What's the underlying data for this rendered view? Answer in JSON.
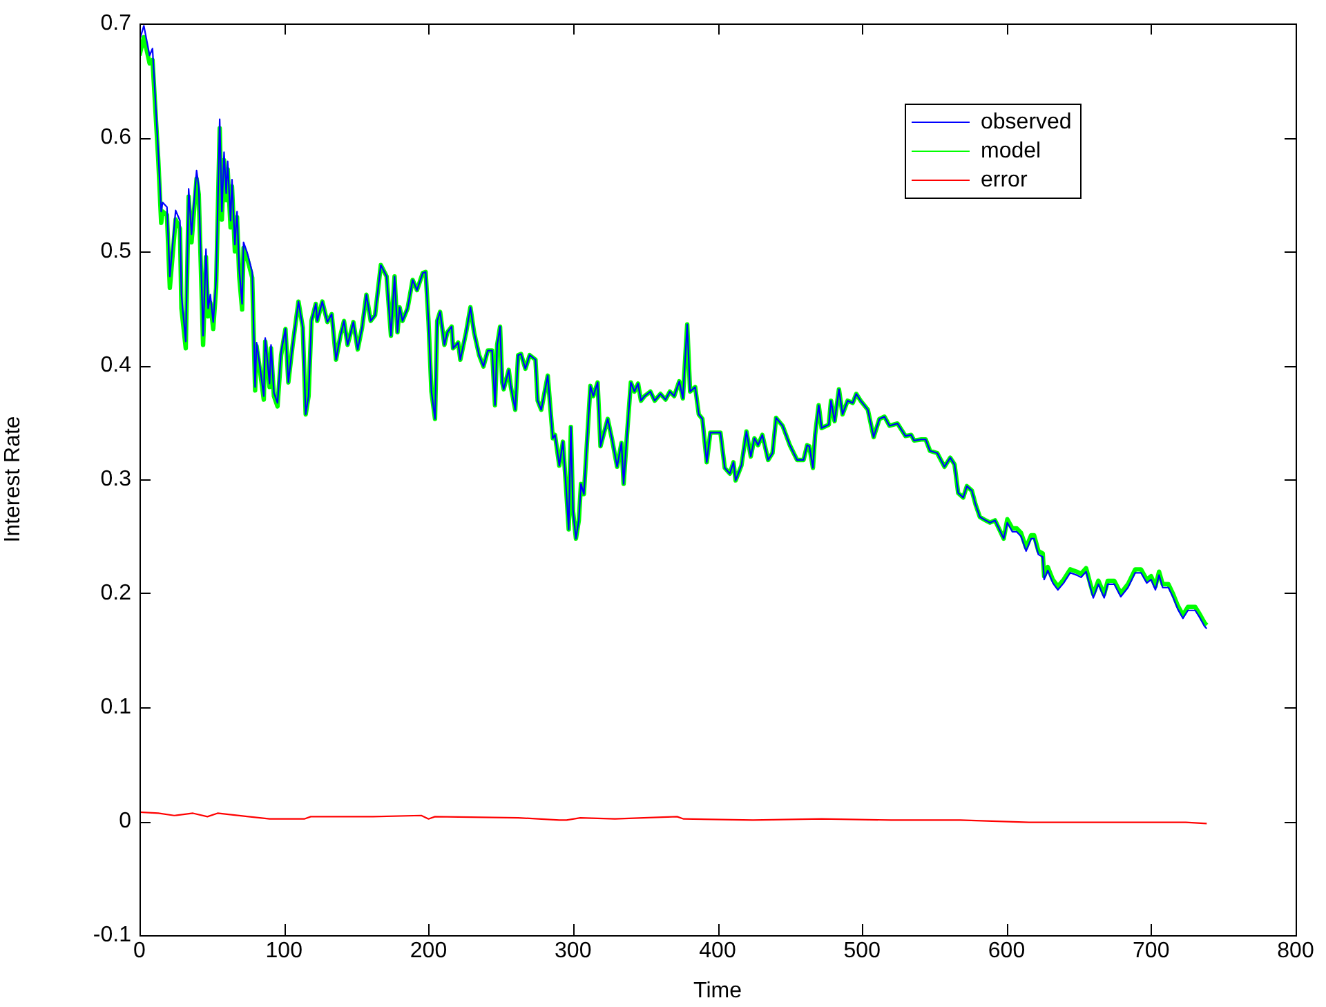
{
  "chart_data": {
    "type": "line",
    "xlabel": "Time",
    "ylabel": "Interest Rate",
    "xlim": [
      0,
      800
    ],
    "ylim": [
      -0.1,
      0.7
    ],
    "xticks": [
      0,
      100,
      200,
      300,
      400,
      500,
      600,
      700,
      800
    ],
    "yticks": [
      -0.1,
      0,
      0.1,
      0.2,
      0.3,
      0.4,
      0.5,
      0.6,
      0.7
    ],
    "grid": false,
    "legend": "top right",
    "marker": "none",
    "line_style": "solid",
    "x": [
      0,
      3,
      7,
      9,
      13,
      15,
      16,
      19,
      21,
      25,
      28,
      29,
      32,
      34,
      36,
      39.5,
      41,
      44,
      46,
      47.5,
      49,
      51,
      53,
      55.5,
      57,
      58.5,
      60,
      61,
      63,
      64,
      66,
      67.5,
      69,
      71,
      72,
      74.5,
      78,
      80,
      81,
      83,
      86,
      87,
      90,
      91,
      93,
      95.5,
      98,
      101,
      103,
      106,
      110,
      113,
      115,
      117,
      119,
      122,
      123,
      126.5,
      130,
      133,
      136,
      139,
      141.5,
      144,
      148,
      151,
      154,
      157,
      160,
      163,
      167,
      171,
      174,
      176.5,
      178.5,
      180,
      182,
      185.5,
      189,
      192,
      196,
      198,
      200,
      202,
      204.5,
      206,
      208,
      211,
      213,
      216,
      217,
      220.5,
      222,
      226,
      229,
      231.5,
      235,
      238,
      241,
      244,
      246,
      247.5,
      249.5,
      251,
      252,
      255.5,
      257,
      260,
      262,
      264,
      267,
      270,
      274,
      275.5,
      278,
      282.5,
      286,
      287.5,
      290.5,
      293,
      295,
      297,
      298.5,
      300,
      302,
      304,
      305.5,
      307.5,
      312,
      314,
      317,
      319,
      324,
      327,
      330.5,
      333.5,
      335,
      337.5,
      340,
      342.5,
      345,
      347,
      349.5,
      353.5,
      356.5,
      360.5,
      364,
      367,
      370,
      373.5,
      376,
      379,
      381,
      384.5,
      387,
      389.5,
      392.5,
      395,
      399,
      402,
      405,
      408.5,
      411,
      412.5,
      416.5,
      420,
      423,
      425.5,
      428,
      431,
      435,
      438,
      440.5,
      445,
      450,
      455,
      459.5,
      462,
      463.5,
      466,
      467.5,
      470,
      472,
      477,
      478.5,
      481,
      484,
      486.5,
      490,
      493.5,
      496,
      499,
      504,
      508,
      512,
      515.5,
      519,
      524.5,
      530,
      534,
      536,
      541,
      544,
      547,
      552,
      557,
      561,
      564,
      566.5,
      570,
      572.5,
      576,
      578.5,
      581.5,
      585.5,
      588.5,
      592,
      595,
      598,
      600.5,
      604,
      607,
      610,
      613.5,
      617,
      619,
      622,
      625,
      626,
      628.5,
      632,
      635.5,
      639.5,
      644,
      648.5,
      651.5,
      655,
      658,
      660,
      663.5,
      667.5,
      670,
      674.5,
      679,
      684,
      689,
      693,
      697,
      700,
      703,
      705.5,
      708,
      712,
      715,
      718.5,
      722,
      725.5,
      730.5,
      733.5,
      737,
      738.5
    ],
    "series": [
      {
        "name": "observed",
        "color": "#0000ff",
        "values": [
          0.685,
          0.698,
          0.672,
          0.678,
          0.587,
          0.535,
          0.543,
          0.539,
          0.478,
          0.536,
          0.527,
          0.462,
          0.421,
          0.555,
          0.515,
          0.571,
          0.557,
          0.426,
          0.502,
          0.45,
          0.462,
          0.438,
          0.475,
          0.616,
          0.535,
          0.587,
          0.551,
          0.579,
          0.527,
          0.563,
          0.506,
          0.535,
          0.484,
          0.454,
          0.508,
          0.499,
          0.482,
          0.381,
          0.42,
          0.402,
          0.373,
          0.424,
          0.384,
          0.418,
          0.376,
          0.367,
          0.412,
          0.432,
          0.385,
          0.418,
          0.456,
          0.433,
          0.357,
          0.373,
          0.439,
          0.454,
          0.439,
          0.456,
          0.438,
          0.445,
          0.405,
          0.426,
          0.439,
          0.418,
          0.438,
          0.414,
          0.433,
          0.462,
          0.439,
          0.444,
          0.488,
          0.478,
          0.426,
          0.478,
          0.429,
          0.451,
          0.439,
          0.45,
          0.475,
          0.466,
          0.481,
          0.482,
          0.438,
          0.377,
          0.353,
          0.439,
          0.447,
          0.418,
          0.429,
          0.434,
          0.415,
          0.42,
          0.405,
          0.429,
          0.451,
          0.429,
          0.409,
          0.399,
          0.413,
          0.413,
          0.365,
          0.418,
          0.434,
          0.385,
          0.379,
          0.396,
          0.381,
          0.361,
          0.409,
          0.41,
          0.397,
          0.409,
          0.405,
          0.369,
          0.361,
          0.391,
          0.336,
          0.339,
          0.312,
          0.333,
          0.296,
          0.256,
          0.346,
          0.272,
          0.248,
          0.264,
          0.296,
          0.287,
          0.382,
          0.373,
          0.385,
          0.329,
          0.353,
          0.335,
          0.311,
          0.332,
          0.296,
          0.342,
          0.385,
          0.377,
          0.384,
          0.369,
          0.373,
          0.377,
          0.369,
          0.375,
          0.37,
          0.377,
          0.373,
          0.386,
          0.371,
          0.436,
          0.377,
          0.381,
          0.357,
          0.353,
          0.315,
          0.341,
          0.341,
          0.341,
          0.31,
          0.305,
          0.315,
          0.299,
          0.312,
          0.342,
          0.32,
          0.336,
          0.33,
          0.339,
          0.317,
          0.323,
          0.354,
          0.347,
          0.33,
          0.317,
          0.317,
          0.33,
          0.329,
          0.31,
          0.339,
          0.365,
          0.345,
          0.348,
          0.369,
          0.351,
          0.379,
          0.357,
          0.369,
          0.367,
          0.375,
          0.369,
          0.361,
          0.337,
          0.353,
          0.355,
          0.347,
          0.349,
          0.338,
          0.339,
          0.334,
          0.335,
          0.335,
          0.325,
          0.323,
          0.311,
          0.319,
          0.313,
          0.288,
          0.284,
          0.294,
          0.29,
          0.278,
          0.267,
          0.264,
          0.262,
          0.264,
          0.256,
          0.248,
          0.262,
          0.254,
          0.254,
          0.25,
          0.237,
          0.248,
          0.248,
          0.234,
          0.232,
          0.212,
          0.22,
          0.209,
          0.203,
          0.209,
          0.218,
          0.216,
          0.214,
          0.219,
          0.205,
          0.196,
          0.208,
          0.196,
          0.208,
          0.208,
          0.197,
          0.205,
          0.218,
          0.218,
          0.209,
          0.212,
          0.203,
          0.216,
          0.205,
          0.205,
          0.197,
          0.186,
          0.178,
          0.185,
          0.185,
          0.179,
          0.171,
          0.169
        ]
      },
      {
        "name": "model",
        "color": "#00ff00",
        "values": [
          0.672,
          0.688,
          0.665,
          0.668,
          0.58,
          0.525,
          0.535,
          0.532,
          0.468,
          0.528,
          0.52,
          0.45,
          0.415,
          0.548,
          0.508,
          0.564,
          0.55,
          0.418,
          0.495,
          0.443,
          0.455,
          0.432,
          0.468,
          0.608,
          0.528,
          0.58,
          0.545,
          0.572,
          0.521,
          0.557,
          0.5,
          0.53,
          0.478,
          0.449,
          0.503,
          0.494,
          0.477,
          0.378,
          0.417,
          0.399,
          0.37,
          0.421,
          0.381,
          0.415,
          0.373,
          0.364,
          0.409,
          0.432,
          0.385,
          0.418,
          0.456,
          0.433,
          0.357,
          0.373,
          0.439,
          0.454,
          0.439,
          0.456,
          0.438,
          0.445,
          0.405,
          0.426,
          0.439,
          0.418,
          0.438,
          0.414,
          0.433,
          0.462,
          0.439,
          0.444,
          0.488,
          0.478,
          0.426,
          0.478,
          0.429,
          0.451,
          0.439,
          0.45,
          0.475,
          0.466,
          0.481,
          0.482,
          0.438,
          0.377,
          0.353,
          0.439,
          0.447,
          0.418,
          0.429,
          0.434,
          0.415,
          0.42,
          0.405,
          0.429,
          0.451,
          0.429,
          0.409,
          0.399,
          0.413,
          0.413,
          0.365,
          0.418,
          0.434,
          0.385,
          0.379,
          0.396,
          0.381,
          0.361,
          0.409,
          0.41,
          0.397,
          0.409,
          0.405,
          0.369,
          0.361,
          0.391,
          0.336,
          0.339,
          0.312,
          0.333,
          0.296,
          0.256,
          0.346,
          0.272,
          0.248,
          0.264,
          0.296,
          0.287,
          0.382,
          0.373,
          0.385,
          0.329,
          0.353,
          0.335,
          0.311,
          0.332,
          0.296,
          0.342,
          0.385,
          0.377,
          0.384,
          0.369,
          0.373,
          0.377,
          0.369,
          0.375,
          0.37,
          0.377,
          0.373,
          0.386,
          0.371,
          0.436,
          0.377,
          0.381,
          0.357,
          0.353,
          0.315,
          0.341,
          0.341,
          0.341,
          0.31,
          0.305,
          0.315,
          0.299,
          0.312,
          0.342,
          0.32,
          0.336,
          0.33,
          0.339,
          0.317,
          0.323,
          0.354,
          0.347,
          0.33,
          0.317,
          0.317,
          0.33,
          0.329,
          0.31,
          0.339,
          0.365,
          0.345,
          0.348,
          0.369,
          0.351,
          0.379,
          0.357,
          0.369,
          0.367,
          0.375,
          0.369,
          0.361,
          0.337,
          0.353,
          0.355,
          0.347,
          0.349,
          0.338,
          0.339,
          0.334,
          0.335,
          0.335,
          0.325,
          0.323,
          0.311,
          0.319,
          0.313,
          0.288,
          0.284,
          0.294,
          0.29,
          0.278,
          0.267,
          0.264,
          0.262,
          0.264,
          0.256,
          0.248,
          0.265,
          0.257,
          0.257,
          0.253,
          0.24,
          0.251,
          0.251,
          0.237,
          0.235,
          0.215,
          0.223,
          0.212,
          0.206,
          0.212,
          0.221,
          0.219,
          0.217,
          0.222,
          0.208,
          0.199,
          0.211,
          0.199,
          0.211,
          0.211,
          0.2,
          0.208,
          0.221,
          0.221,
          0.212,
          0.215,
          0.206,
          0.219,
          0.208,
          0.208,
          0.2,
          0.189,
          0.181,
          0.188,
          0.188,
          0.182,
          0.174,
          0.172
        ]
      },
      {
        "name": "error",
        "color": "#ff0000",
        "x": [
          0,
          13,
          24,
          37,
          47,
          54,
          75.5,
          90,
          114,
          118.5,
          161.5,
          195,
          200,
          204.5,
          262,
          290.5,
          295.5,
          305,
          329,
          372,
          376.5,
          424.5,
          472,
          520,
          568,
          615.5,
          663.5,
          687.5,
          724,
          738.5
        ],
        "values": [
          0.008,
          0.007,
          0.005,
          0.007,
          0.004,
          0.007,
          0.004,
          0.002,
          0.002,
          0.004,
          0.004,
          0.005,
          0.002,
          0.004,
          0.003,
          0.001,
          0.001,
          0.003,
          0.002,
          0.004,
          0.002,
          0.001,
          0.002,
          0.001,
          0.001,
          -0.001,
          -0.001,
          -0.001,
          -0.001,
          -0.002
        ]
      }
    ]
  }
}
